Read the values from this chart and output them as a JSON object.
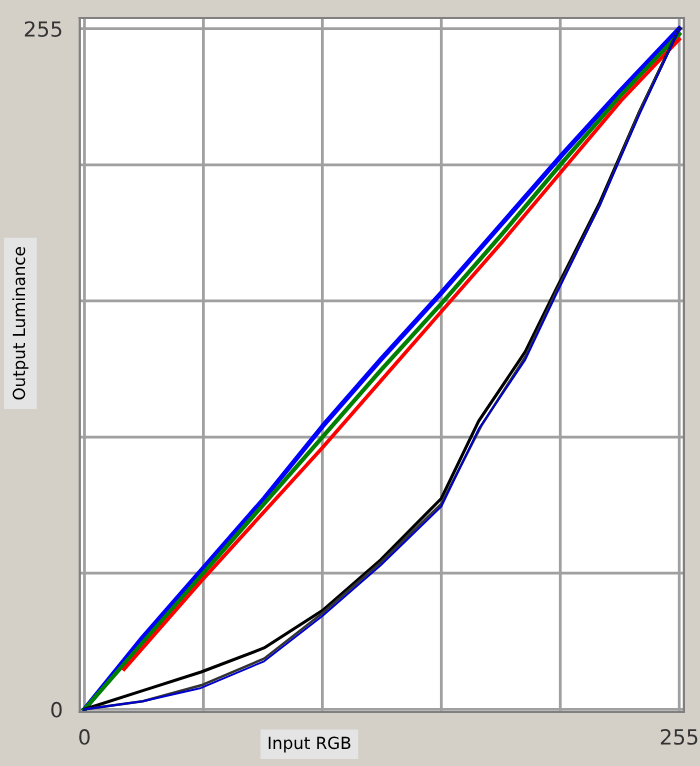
{
  "chart_data": {
    "type": "line",
    "xlabel": "Input RGB",
    "ylabel": "Output Luminance",
    "xlim": [
      -2,
      257
    ],
    "ylim": [
      -1,
      259
    ],
    "xticks": [
      0,
      {
        "value": 51,
        "label": null
      },
      {
        "value": 102,
        "label": null
      },
      {
        "value": 153,
        "label": null
      },
      {
        "value": 204,
        "label": null
      },
      255
    ],
    "yticks": [
      0,
      {
        "value": 51,
        "label": null
      },
      {
        "value": 102,
        "label": null
      },
      {
        "value": 153,
        "label": null
      },
      {
        "value": 204,
        "label": null
      },
      255
    ],
    "grid": true,
    "marker": "none",
    "line_style": "solid",
    "series": [
      {
        "color": "#0000ff",
        "x": [
          0,
          25,
          50,
          77,
          102,
          127,
          153,
          179,
          205,
          230,
          255
        ],
        "values": [
          0,
          27,
          52,
          79,
          106,
          131,
          156,
          182,
          208,
          232,
          255
        ]
      },
      {
        "color": "#008000",
        "x": [
          0,
          25,
          50,
          77,
          102,
          127,
          153,
          179,
          205,
          230,
          255
        ],
        "values": [
          0,
          25,
          50,
          77,
          102,
          127,
          152,
          178,
          205,
          230,
          253
        ]
      },
      {
        "color": "#ff0000",
        "x": [
          17,
          50,
          77,
          102,
          127,
          153,
          179,
          205,
          230,
          255
        ],
        "values": [
          15,
          48,
          74,
          98,
          123,
          149,
          175,
          202,
          228,
          251
        ]
      },
      {
        "color": "#000000",
        "x": [
          0,
          25,
          50,
          77,
          102,
          127,
          153,
          169,
          189,
          202,
          221,
          238,
          255
        ],
        "values": [
          0,
          7,
          14,
          23,
          37,
          56,
          79,
          108,
          134,
          157,
          190,
          224,
          255
        ]
      },
      {
        "color": "#333333",
        "x": [
          0,
          25,
          50,
          77,
          102,
          127,
          153,
          170,
          189,
          202,
          221,
          238,
          255
        ],
        "values": [
          0,
          3,
          9,
          19,
          36,
          55,
          77,
          106,
          132,
          156,
          189,
          224,
          255
        ]
      },
      {
        "color": "#0000cc",
        "x": [
          0,
          25,
          50,
          77,
          102,
          127,
          153,
          169,
          189,
          202,
          221,
          238,
          255
        ],
        "values": [
          0,
          3,
          8,
          18,
          35,
          54,
          76,
          105,
          131,
          155,
          189,
          223,
          255
        ]
      }
    ]
  }
}
